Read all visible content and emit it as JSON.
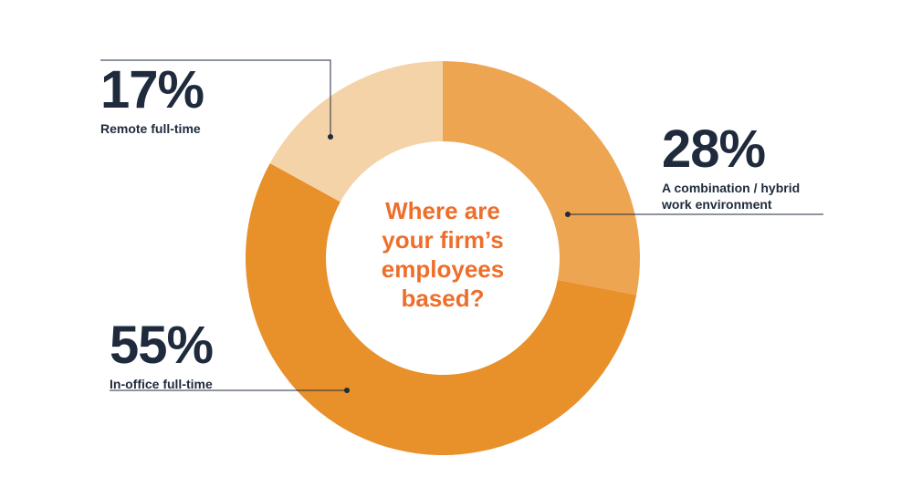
{
  "chart_data": {
    "type": "pie",
    "title": "Where are\nyour firm’s\nemployees\nbased?",
    "slices": [
      {
        "label": "A combination / hybrid\nwork environment",
        "value": 28,
        "display": "28%",
        "color": "#eda552"
      },
      {
        "label": "In-office full-time",
        "value": 55,
        "display": "55%",
        "color": "#e8902a"
      },
      {
        "label": "Remote full-time",
        "value": 17,
        "display": "17%",
        "color": "#f4d3a8"
      }
    ]
  }
}
